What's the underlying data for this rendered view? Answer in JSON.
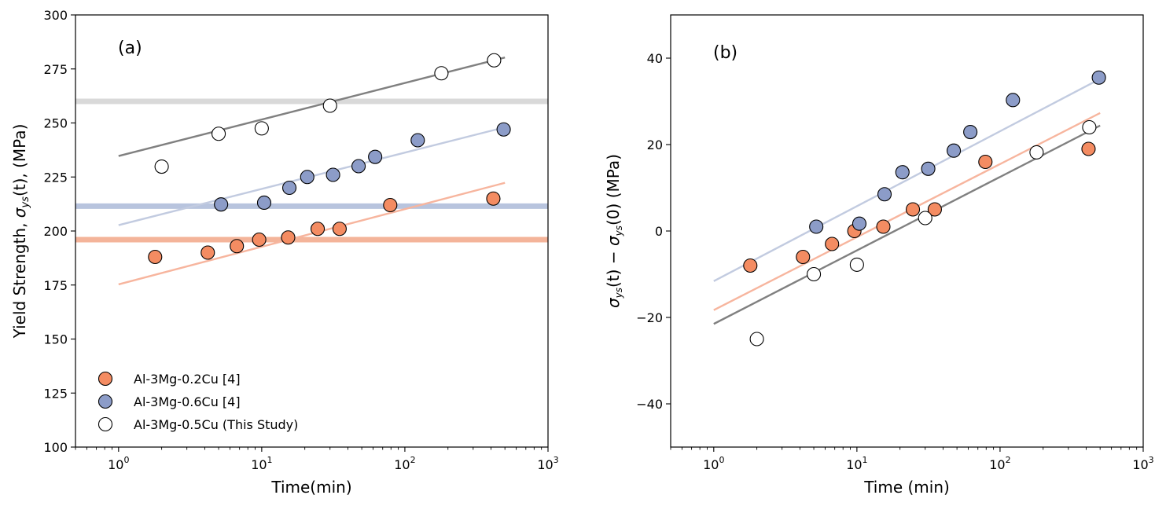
{
  "chart_data": [
    {
      "type": "scatter",
      "panel_label": "(a)",
      "xscale": "log",
      "xlim": [
        0.5,
        1000
      ],
      "ylim": [
        100,
        300
      ],
      "xlabel": "Time(min)",
      "ylabel": "Yield Strength, σ_ys(t), (MPa)",
      "ylabel_parts": {
        "pre": "Yield Strength, ",
        "sym": "σ",
        "sub": "ys",
        "arg": "(t)",
        "post": ", (MPa)"
      },
      "xticks": [
        {
          "value": 1,
          "base": "10",
          "exp": "0"
        },
        {
          "value": 10,
          "base": "10",
          "exp": "1"
        },
        {
          "value": 100,
          "base": "10",
          "exp": "2"
        },
        {
          "value": 1000,
          "base": "10",
          "exp": "3"
        }
      ],
      "yticks": [
        100,
        125,
        150,
        175,
        200,
        225,
        250,
        275,
        300
      ],
      "hlines": [
        {
          "y": 196,
          "color": "#f4b49a"
        },
        {
          "y": 211.5,
          "color": "#b8c4de"
        },
        {
          "y": 260,
          "color": "#d9d9d9"
        }
      ],
      "series": [
        {
          "name": "Al-3Mg-0.2Cu [4]",
          "facecolor": "#f48c62",
          "linecolor": "#f7b59e",
          "points": [
            [
              1.8,
              188
            ],
            [
              4.2,
              190
            ],
            [
              6.7,
              193
            ],
            [
              9.6,
              196
            ],
            [
              15.3,
              197
            ],
            [
              24.6,
              201
            ],
            [
              35,
              201
            ],
            [
              79,
              212
            ],
            [
              415,
              215
            ]
          ],
          "fit": [
            [
              1,
              175.3
            ],
            [
              500,
              222.3
            ]
          ]
        },
        {
          "name": "Al-3Mg-0.6Cu [4]",
          "facecolor": "#8c9cc8",
          "linecolor": "#c2cbe0",
          "points": [
            [
              5.2,
              212.3
            ],
            [
              10.4,
              213.1
            ],
            [
              15.6,
              220
            ],
            [
              20.8,
              225
            ],
            [
              31.5,
              226
            ],
            [
              47.5,
              230
            ],
            [
              62,
              234.3
            ],
            [
              123,
              242
            ],
            [
              490,
              247
            ]
          ],
          "fit": [
            [
              1,
              202.7
            ],
            [
              500,
              248
            ]
          ]
        },
        {
          "name": "Al-3Mg-0.5Cu (This Study)",
          "facecolor": "#ffffff",
          "linecolor": "#808080",
          "points": [
            [
              2,
              229.8
            ],
            [
              5,
              245
            ],
            [
              10,
              247.5
            ],
            [
              30,
              258
            ],
            [
              180,
              273
            ],
            [
              420,
              279
            ]
          ],
          "fit": [
            [
              1,
              234.7
            ],
            [
              500,
              280.3
            ]
          ]
        }
      ],
      "legend": {
        "placement": "lower-left"
      }
    },
    {
      "type": "scatter",
      "panel_label": "(b)",
      "xscale": "log",
      "xlim": [
        0.5,
        1000
      ],
      "ylim": [
        -50,
        50
      ],
      "xlabel": "Time (min)",
      "ylabel": "σ_ys(t) − σ_ys(0) (MPa)",
      "ylabel_parts": {
        "sym": "σ",
        "sub": "ys",
        "arg1": "(t)",
        "minus": " − ",
        "arg2": "(0)",
        "post": " (MPa)"
      },
      "xticks": [
        {
          "value": 1,
          "base": "10",
          "exp": "0"
        },
        {
          "value": 10,
          "base": "10",
          "exp": "1"
        },
        {
          "value": 100,
          "base": "10",
          "exp": "2"
        },
        {
          "value": 1000,
          "base": "10",
          "exp": "3"
        }
      ],
      "yticks": [
        {
          "value": -40,
          "label": "−40"
        },
        {
          "value": -20,
          "label": "−20"
        },
        {
          "value": 0,
          "label": "0"
        },
        {
          "value": 20,
          "label": "20"
        },
        {
          "value": 40,
          "label": "40"
        }
      ],
      "series": [
        {
          "name": "Al-3Mg-0.2Cu [4]",
          "facecolor": "#f48c62",
          "linecolor": "#f7b59e",
          "points": [
            [
              1.8,
              -8
            ],
            [
              4.2,
              -6
            ],
            [
              6.7,
              -3
            ],
            [
              9.6,
              0
            ],
            [
              15.3,
              1
            ],
            [
              24.6,
              5
            ],
            [
              35,
              5
            ],
            [
              79,
              16
            ],
            [
              415,
              19
            ]
          ],
          "fit": [
            [
              1,
              -18.3
            ],
            [
              500,
              27.3
            ]
          ]
        },
        {
          "name": "Al-3Mg-0.6Cu [4]",
          "facecolor": "#8c9cc8",
          "linecolor": "#c2cbe0",
          "points": [
            [
              5.2,
              1
            ],
            [
              10.4,
              1.7
            ],
            [
              15.6,
              8.5
            ],
            [
              20.8,
              13.6
            ],
            [
              31.5,
              14.4
            ],
            [
              47.5,
              18.6
            ],
            [
              62,
              22.9
            ],
            [
              123,
              30.3
            ],
            [
              490,
              35.5
            ]
          ],
          "fit": [
            [
              1,
              -11.6
            ],
            [
              500,
              35.2
            ]
          ]
        },
        {
          "name": "Al-3Mg-0.5Cu (This Study)",
          "facecolor": "#ffffff",
          "linecolor": "#808080",
          "points": [
            [
              2,
              -25
            ],
            [
              5,
              -10
            ],
            [
              10,
              -7.8
            ],
            [
              30,
              3
            ],
            [
              180,
              18.2
            ],
            [
              420,
              24
            ]
          ],
          "fit": [
            [
              1,
              -21.5
            ],
            [
              500,
              24.4
            ]
          ]
        }
      ]
    }
  ]
}
